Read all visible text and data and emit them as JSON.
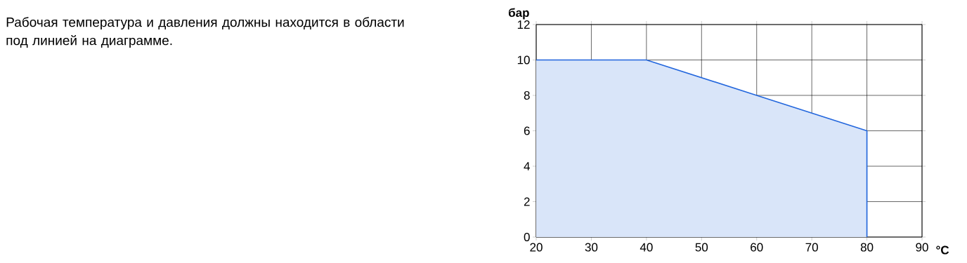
{
  "chart_data": {
    "type": "area",
    "x": [
      20,
      40,
      60,
      80,
      80
    ],
    "values": [
      10,
      10,
      8,
      6,
      0
    ],
    "color": "#2266dd",
    "xlabel": "°C",
    "ylabel": "бар",
    "xlim": [
      20,
      90
    ],
    "ylim": [
      0,
      12
    ],
    "xticks": [
      20,
      30,
      40,
      50,
      60,
      70,
      80,
      90
    ],
    "yticks": [
      0,
      2,
      4,
      6,
      8,
      10,
      12
    ],
    "grid": true,
    "annotations": [
      "Рабочая температура и давления должны находится в области под линией на диаграмме."
    ]
  }
}
